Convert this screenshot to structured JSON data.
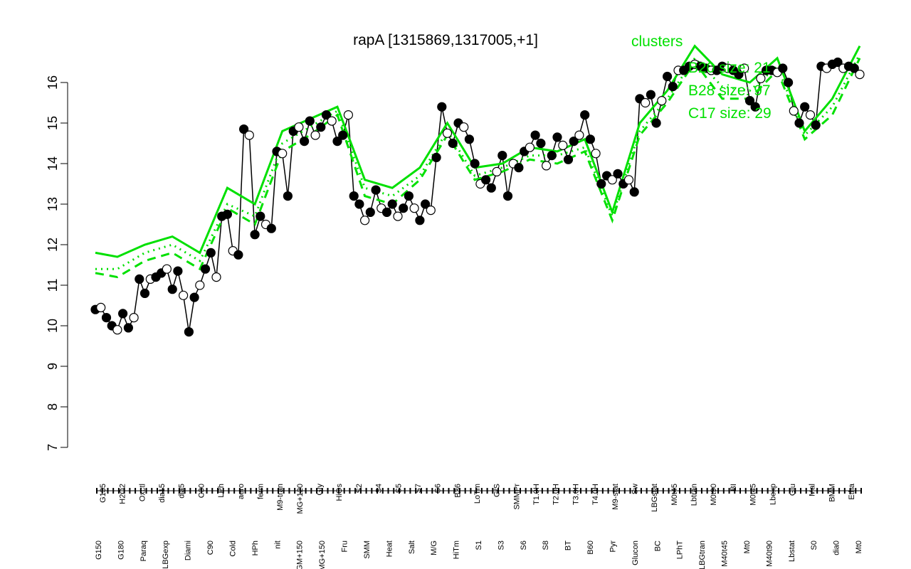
{
  "chart_data": {
    "type": "line",
    "title": "rapA [1315869,1317005,+1]",
    "xlabel": "",
    "ylabel": "",
    "ylim": [
      7,
      16.7
    ],
    "y_ticks": [
      7,
      8,
      9,
      10,
      11,
      12,
      13,
      14,
      15,
      16
    ],
    "x_tick_labels_upper": [
      "G135",
      "H2O2",
      "Oxctl",
      "dia15",
      "dia5",
      "C30",
      "LPh",
      "aero",
      "ferm",
      "M9-tran",
      "MG+120",
      "Gly",
      "HiOs",
      "S2",
      "S4",
      "S5",
      "S7",
      "S6",
      "B36",
      "LoTm",
      "G/S",
      "SMMPr",
      "T1.0H",
      "T2.0H",
      "T3.0H",
      "T4.0H",
      "M9-stat",
      "Sw",
      "LBGstat",
      "M0t45",
      "Lbtran",
      "M0t90",
      "BI",
      "M0t45",
      "Lbexp",
      "Glu",
      "Mal",
      "BMM",
      "Etha"
    ],
    "x_tick_labels_lower": [
      "G150",
      "G180",
      "Paraq",
      "LBGexp",
      "Diami",
      "C90",
      "Cold",
      "HPh",
      "nit",
      "GM+150",
      "MG+150",
      "Fru",
      "SMM",
      "Heat",
      "Salt",
      "M/G",
      "HiTm",
      "S1",
      "S3",
      "S6",
      "S8",
      "BT",
      "B60",
      "Pyr",
      "Glucon",
      "BC",
      "LPhT",
      "LBGtran",
      "M40t45",
      "Mt0",
      "M40t90",
      "Lbstat",
      "S0",
      "dia0",
      "Mt0"
    ],
    "legend": {
      "title": "clusters",
      "entries": [
        "B20 size: 21",
        "B28 size: 97",
        "C17 size: 29"
      ],
      "color": "#00e000",
      "placement": "top-right"
    },
    "series": [
      {
        "style": "black-line-with-points",
        "x": [
          1,
          2,
          3,
          4,
          5,
          6,
          7,
          8,
          9,
          10,
          11,
          12,
          13,
          14,
          15,
          16,
          17,
          18,
          19,
          20,
          21,
          22,
          23,
          24,
          25,
          26,
          27,
          28,
          29,
          30,
          31,
          32,
          33,
          34,
          35,
          36,
          37,
          38,
          39,
          40,
          41,
          42,
          43,
          44,
          45,
          46,
          47,
          48,
          49,
          50,
          51,
          52,
          53,
          54,
          55,
          56,
          57,
          58,
          59,
          60,
          61,
          62,
          63,
          64,
          65,
          66,
          67,
          68,
          69,
          70,
          71,
          72,
          73,
          74,
          75,
          76,
          77,
          78,
          79,
          80,
          81,
          82,
          83,
          84,
          85,
          86,
          87,
          88,
          89,
          90,
          91,
          92,
          93,
          94,
          95,
          96,
          97,
          98,
          99,
          100,
          101,
          102,
          103,
          104,
          105,
          106,
          107,
          108,
          109,
          110,
          111,
          112,
          113,
          114,
          115,
          116,
          117,
          118,
          119,
          120,
          121,
          122,
          123,
          124,
          125,
          126,
          127,
          128,
          129,
          130,
          131,
          132,
          133,
          134,
          135,
          136,
          137,
          138,
          139,
          140
        ],
        "y": [
          10.4,
          10.45,
          10.2,
          10.0,
          9.9,
          10.3,
          9.95,
          10.2,
          11.15,
          10.8,
          11.15,
          11.2,
          11.3,
          11.4,
          10.9,
          11.35,
          10.75,
          9.85,
          10.7,
          11.0,
          11.4,
          11.8,
          11.2,
          12.7,
          12.75,
          11.85,
          11.75,
          14.85,
          14.7,
          12.25,
          12.7,
          12.5,
          12.4,
          14.3,
          14.25,
          13.2,
          14.8,
          14.9,
          14.55,
          15.05,
          14.7,
          14.9,
          15.2,
          15.05,
          14.55,
          14.7,
          15.2,
          13.2,
          13.0,
          12.6,
          12.8,
          13.35,
          12.9,
          12.8,
          13.0,
          12.7,
          12.9,
          13.2,
          12.9,
          12.6,
          13.0,
          12.85,
          14.15,
          15.4,
          14.75,
          14.5,
          15.0,
          14.9,
          14.6,
          14.0,
          13.5,
          13.6,
          13.4,
          13.8,
          14.2,
          13.2,
          14.0,
          13.9,
          14.3,
          14.4,
          14.7,
          14.5,
          13.95,
          14.2,
          14.65,
          14.45,
          14.1,
          14.55,
          14.7,
          15.2,
          14.6,
          14.25,
          13.5,
          13.7,
          13.6,
          13.75,
          13.5,
          13.6,
          13.3,
          15.6,
          15.5,
          15.7,
          15.0,
          15.55,
          16.15,
          15.9,
          16.3,
          16.3,
          16.4,
          16.45,
          16.4,
          16.35,
          16.3,
          16.3,
          16.4,
          16.35,
          16.3,
          16.2,
          16.35,
          15.55,
          15.4,
          16.1,
          16.3,
          16.3,
          16.25,
          16.35,
          16.0,
          15.3,
          15.0,
          15.4,
          15.2,
          14.95,
          16.4,
          16.35,
          16.45,
          16.5,
          16.35,
          16.4,
          16.35,
          16.2
        ]
      },
      {
        "style": "green-solid",
        "x": [
          1,
          5,
          10,
          15,
          20,
          25,
          30,
          35,
          40,
          45,
          50,
          55,
          60,
          65,
          70,
          75,
          80,
          85,
          90,
          95,
          100,
          105,
          110,
          115,
          120,
          125,
          130,
          135,
          140
        ],
        "y": [
          11.8,
          11.7,
          12.0,
          12.2,
          11.8,
          13.4,
          13.0,
          14.8,
          15.1,
          15.4,
          13.6,
          13.4,
          13.9,
          15.0,
          13.9,
          14.0,
          14.4,
          14.3,
          14.6,
          12.8,
          15.0,
          15.8,
          16.9,
          16.2,
          16.0,
          16.6,
          14.8,
          15.6,
          16.9
        ]
      },
      {
        "style": "green-dashed",
        "x": [
          1,
          5,
          10,
          15,
          20,
          25,
          30,
          35,
          40,
          45,
          50,
          55,
          60,
          65,
          70,
          75,
          80,
          85,
          90,
          95,
          100,
          105,
          110,
          115,
          120,
          125,
          130,
          135,
          140
        ],
        "y": [
          11.3,
          11.2,
          11.6,
          11.8,
          11.4,
          12.9,
          12.5,
          14.3,
          14.7,
          15.2,
          13.2,
          13.0,
          13.6,
          14.7,
          13.6,
          13.8,
          14.1,
          14.0,
          14.3,
          12.6,
          14.7,
          15.5,
          16.5,
          15.6,
          15.6,
          16.3,
          14.6,
          15.2,
          16.6
        ]
      },
      {
        "style": "green-dotted",
        "x": [
          1,
          5,
          10,
          15,
          20,
          25,
          30,
          35,
          40,
          45,
          50,
          55,
          60,
          65,
          70,
          75,
          80,
          85,
          90,
          95,
          100,
          105,
          110,
          115,
          120,
          125,
          130,
          135,
          140
        ],
        "y": [
          11.4,
          11.4,
          11.8,
          12.0,
          11.6,
          13.0,
          12.7,
          14.5,
          14.9,
          15.3,
          13.4,
          13.2,
          13.7,
          14.8,
          13.7,
          13.9,
          14.2,
          14.2,
          14.4,
          12.7,
          14.8,
          15.6,
          16.6,
          15.9,
          15.8,
          16.4,
          14.7,
          15.4,
          16.7
        ]
      }
    ],
    "colors": {
      "main_line": "#000000",
      "cluster_lines": "#00e000",
      "point_fill_open": "#ffffff",
      "point_fill_closed": "#000000"
    }
  }
}
